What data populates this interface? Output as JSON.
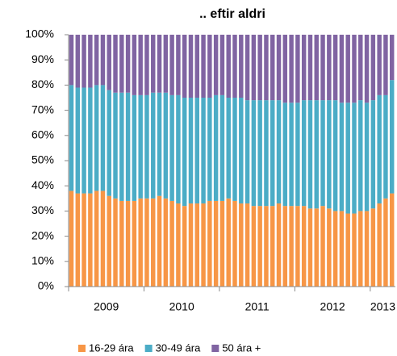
{
  "chart_data": {
    "type": "stacked-bar",
    "title": ".. eftir aldri",
    "categories": [
      null,
      null,
      null,
      null,
      null,
      null,
      "2009",
      null,
      null,
      null,
      null,
      null,
      null,
      null,
      null,
      null,
      null,
      null,
      "2010",
      null,
      null,
      null,
      null,
      null,
      null,
      null,
      null,
      null,
      null,
      null,
      "2011",
      null,
      null,
      null,
      null,
      null,
      null,
      null,
      null,
      null,
      null,
      null,
      "2012",
      null,
      null,
      null,
      null,
      null,
      null,
      null,
      "2013",
      null
    ],
    "series": [
      {
        "name": "16-29 ára",
        "color": "#f79646",
        "values": [
          38,
          37,
          37,
          37,
          38,
          38,
          36,
          35,
          34,
          34,
          34,
          35,
          35,
          35,
          36,
          35,
          34,
          33,
          32,
          33,
          33,
          33,
          34,
          34,
          34,
          35,
          34,
          33,
          33,
          32,
          32,
          32,
          32,
          33,
          32,
          32,
          32,
          32,
          31,
          31,
          32,
          31,
          30,
          30,
          29,
          29,
          30,
          30,
          31,
          33,
          35,
          37
        ]
      },
      {
        "name": "30-49 ára",
        "color": "#4bacc6",
        "values": [
          42,
          42,
          42,
          42,
          42,
          42,
          42,
          42,
          43,
          43,
          42,
          41,
          41,
          42,
          41,
          42,
          42,
          43,
          43,
          42,
          42,
          42,
          41,
          42,
          42,
          40,
          41,
          42,
          41,
          42,
          42,
          42,
          42,
          41,
          41,
          41,
          41,
          42,
          43,
          43,
          42,
          43,
          44,
          43,
          44,
          44,
          44,
          43,
          43,
          43,
          41,
          45
        ]
      },
      {
        "name": "50 ára +",
        "color": "#8064a2",
        "values": [
          20,
          21,
          21,
          21,
          20,
          20,
          22,
          23,
          23,
          23,
          24,
          24,
          24,
          23,
          23,
          23,
          24,
          24,
          25,
          25,
          25,
          25,
          25,
          24,
          24,
          25,
          25,
          25,
          26,
          26,
          26,
          26,
          26,
          26,
          27,
          27,
          27,
          26,
          26,
          26,
          26,
          26,
          26,
          27,
          27,
          27,
          26,
          27,
          26,
          24,
          24,
          18
        ]
      }
    ],
    "ylim": [
      0,
      100
    ],
    "yticks": [
      {
        "value": 0,
        "label": "0%"
      },
      {
        "value": 10,
        "label": "10%"
      },
      {
        "value": 20,
        "label": "20%"
      },
      {
        "value": 30,
        "label": "30%"
      },
      {
        "value": 40,
        "label": "40%"
      },
      {
        "value": 50,
        "label": "50%"
      },
      {
        "value": 60,
        "label": "60%"
      },
      {
        "value": 70,
        "label": "70%"
      },
      {
        "value": 80,
        "label": "80%"
      },
      {
        "value": 90,
        "label": "90%"
      },
      {
        "value": 100,
        "label": "100%"
      }
    ],
    "legend": "bottom"
  }
}
